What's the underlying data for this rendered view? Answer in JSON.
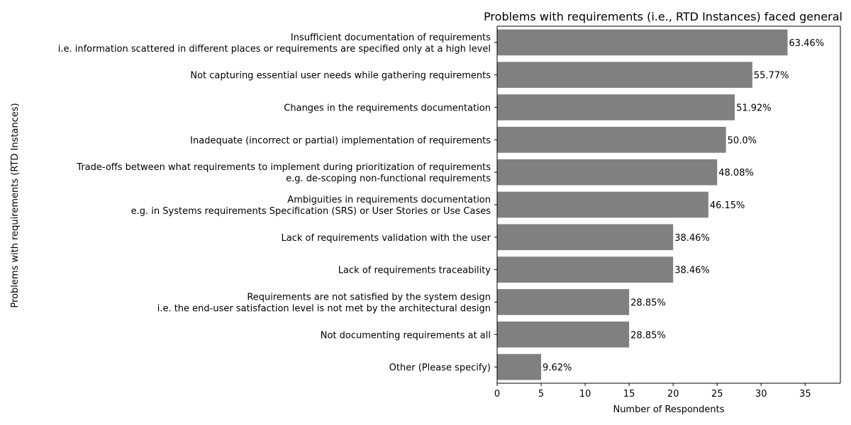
{
  "chart_data": {
    "type": "bar",
    "orientation": "horizontal",
    "title": "Problems with requirements (i.e., RTD Instances) faced general",
    "xlabel": "Number of Respondents",
    "ylabel": "Problems with requirements (RTD Instances)",
    "xlim": [
      0,
      39
    ],
    "xticks": [
      0,
      5,
      10,
      15,
      20,
      25,
      30,
      35
    ],
    "grid": false,
    "bar_color": "#808080",
    "categories": [
      [
        "Insufficient documentation of requirements",
        "i.e. information scattered in different places or requirements are specified only at a high level"
      ],
      [
        "Not capturing essential user needs while gathering requirements"
      ],
      [
        "Changes in the requirements documentation"
      ],
      [
        "Inadequate (incorrect or partial) implementation of requirements"
      ],
      [
        "Trade-offs between what requirements to implement during prioritization of requirements",
        "e.g.  de-scoping non-functional requirements"
      ],
      [
        "Ambiguities in requirements documentation",
        "e.g.  in Systems requirements Specification (SRS) or User Stories or Use Cases"
      ],
      [
        "Lack of requirements validation with the user"
      ],
      [
        "Lack of requirements traceability"
      ],
      [
        "Requirements are not satisfied by the system design",
        "i.e. the end-user satisfaction level is not met by the architectural design"
      ],
      [
        "Not documenting requirements at all"
      ],
      [
        "Other (Please specify)"
      ]
    ],
    "values": [
      33,
      29,
      27,
      26,
      25,
      24,
      20,
      20,
      15,
      15,
      5
    ],
    "labels": [
      "63.46%",
      "55.77%",
      "51.92%",
      "50.0%",
      "48.08%",
      "46.15%",
      "38.46%",
      "38.46%",
      "28.85%",
      "28.85%",
      "9.62%"
    ]
  }
}
